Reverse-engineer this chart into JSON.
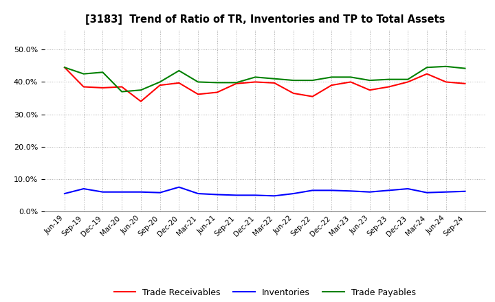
{
  "title": "[3183]  Trend of Ratio of TR, Inventories and TP to Total Assets",
  "x_labels": [
    "Jun-19",
    "Sep-19",
    "Dec-19",
    "Mar-20",
    "Jun-20",
    "Sep-20",
    "Dec-20",
    "Mar-21",
    "Jun-21",
    "Sep-21",
    "Dec-21",
    "Mar-22",
    "Jun-22",
    "Sep-22",
    "Dec-22",
    "Mar-23",
    "Jun-23",
    "Sep-23",
    "Dec-23",
    "Mar-24",
    "Jun-24",
    "Sep-24"
  ],
  "trade_receivables": [
    0.445,
    0.385,
    0.382,
    0.385,
    0.34,
    0.39,
    0.397,
    0.362,
    0.368,
    0.395,
    0.4,
    0.397,
    0.365,
    0.355,
    0.39,
    0.4,
    0.375,
    0.385,
    0.4,
    0.425,
    0.4,
    0.395
  ],
  "inventories": [
    0.055,
    0.07,
    0.06,
    0.06,
    0.06,
    0.058,
    0.075,
    0.055,
    0.052,
    0.05,
    0.05,
    0.048,
    0.055,
    0.065,
    0.065,
    0.063,
    0.06,
    0.065,
    0.07,
    0.058,
    0.06,
    0.062
  ],
  "trade_payables": [
    0.445,
    0.425,
    0.43,
    0.37,
    0.375,
    0.4,
    0.435,
    0.4,
    0.398,
    0.398,
    0.415,
    0.41,
    0.405,
    0.405,
    0.415,
    0.415,
    0.405,
    0.408,
    0.408,
    0.445,
    0.448,
    0.442
  ],
  "tr_color": "#FF0000",
  "inv_color": "#0000FF",
  "tp_color": "#008000",
  "ylim": [
    0.0,
    0.56
  ],
  "yticks": [
    0.0,
    0.1,
    0.2,
    0.3,
    0.4,
    0.5
  ],
  "background_color": "#FFFFFF",
  "plot_bg_color": "#FFFFFF",
  "grid_color": "#AAAAAA",
  "legend_labels": [
    "Trade Receivables",
    "Inventories",
    "Trade Payables"
  ]
}
